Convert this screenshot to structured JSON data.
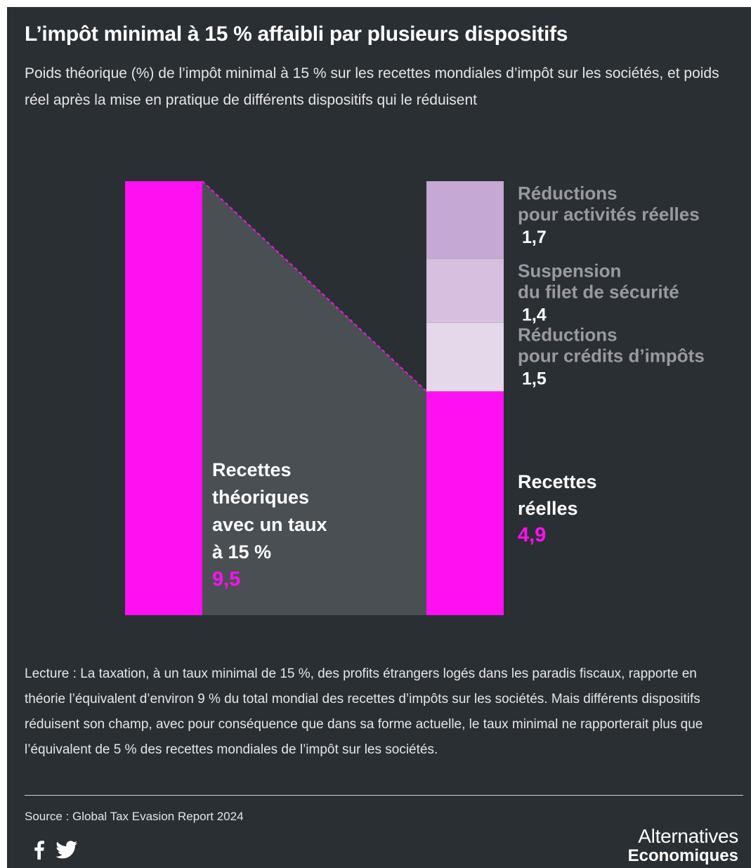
{
  "header": {
    "title": "L’impôt minimal à 15 % affaibli par plusieurs dispositifs",
    "subtitle": "Poids théorique (%) de l’impôt minimal à 15 % sur les recettes mondiales d’impôt sur les sociétés, et poids réel après la mise en pratique de différents dispositifs qui le réduisent"
  },
  "colors": {
    "background": "#2a2f33",
    "magenta": "#ff10f0",
    "connector": "#4a4f53",
    "segment_1": "#c5a8d3",
    "segment_2": "#d6bfdf",
    "segment_3": "#e5d8ea"
  },
  "chart_data": {
    "type": "bar",
    "title": "L’impôt minimal à 15 % affaibli par plusieurs dispositifs",
    "bars": [
      {
        "label_lines": [
          "Recettes",
          "théoriques",
          "avec un taux",
          "à 15 %"
        ],
        "value": 9.5,
        "value_text": "9,5"
      },
      {
        "label_lines": [
          "Recettes",
          "réelles"
        ],
        "value": 4.9,
        "value_text": "4,9"
      }
    ],
    "reductions": [
      {
        "label_lines": [
          "Réductions",
          "pour activités réelles"
        ],
        "value": 1.7,
        "value_text": "1,7"
      },
      {
        "label_lines": [
          "Suspension",
          "du filet de sécurité"
        ],
        "value": 1.4,
        "value_text": "1,4"
      },
      {
        "label_lines": [
          "Réductions",
          "pour crédits d’impôts"
        ],
        "value": 1.5,
        "value_text": "1,5"
      }
    ],
    "ylim": [
      0,
      9.5
    ],
    "grid": false
  },
  "footer": {
    "reading": "Lecture : La taxation, à un taux minimal de 15 %, des profits étrangers logés dans les paradis fiscaux, rapporte en théorie l’équivalent d’environ 9 % du total mondial des recettes d’impôts sur les sociétés. Mais différents dispositifs réduisent son champ, avec pour conséquence que dans sa forme actuelle, le taux minimal ne rapporterait plus que l’équivalent de 5 % des recettes mondiales de l’impôt sur les sociétés.",
    "source": "Source : Global Tax Evasion Report 2024",
    "brand_line1": "Alternatives",
    "brand_line2": "Economiques",
    "social_icons": [
      "facebook-icon",
      "twitter-icon"
    ]
  }
}
